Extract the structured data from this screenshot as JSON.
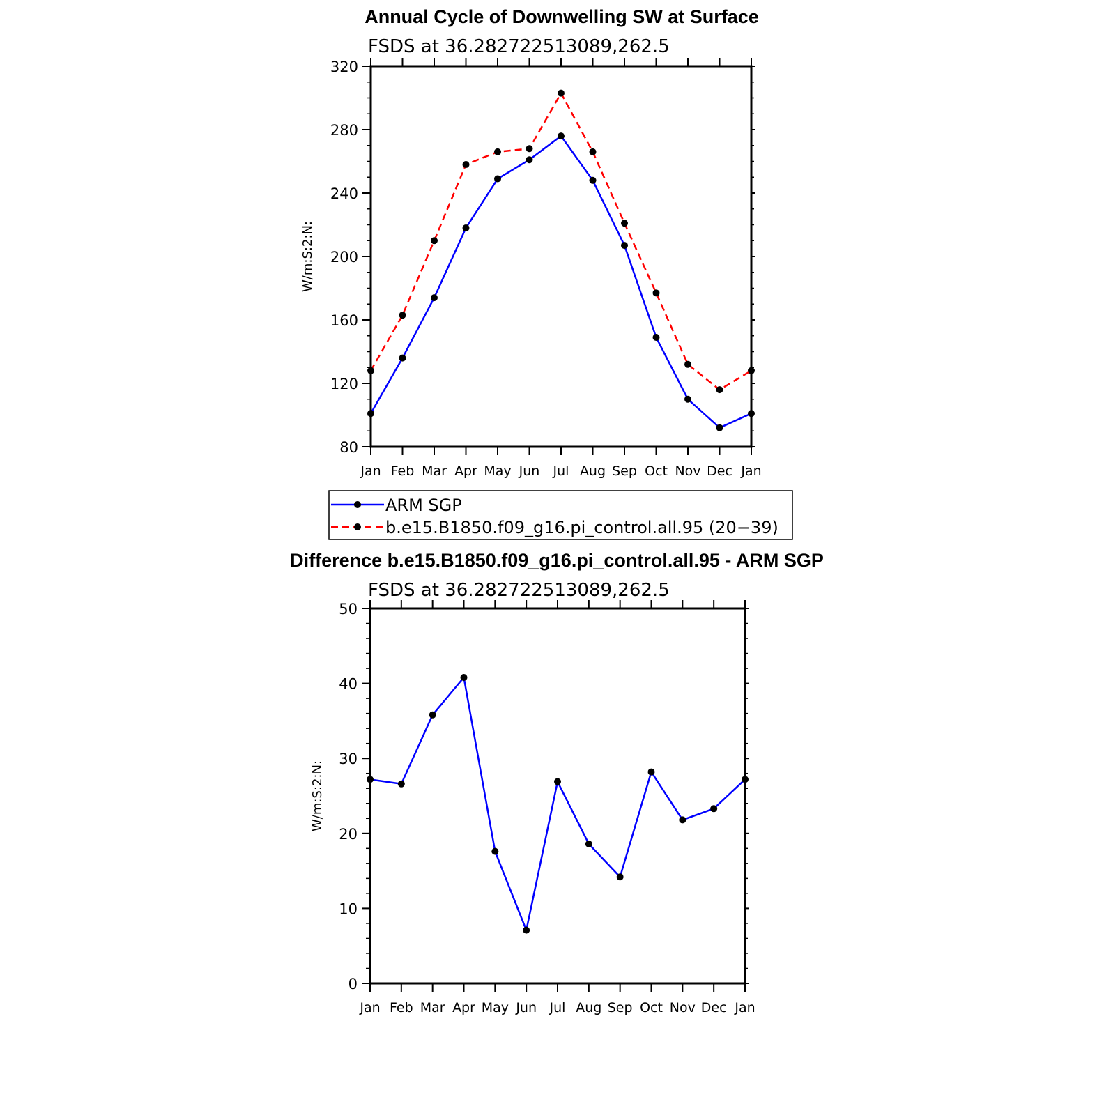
{
  "chart_data": [
    {
      "type": "line",
      "title": "Annual Cycle of Downwelling SW at Surface",
      "subtitle": "FSDS at 36.282722513089,262.5",
      "ylabel": "W/m:S:2:N:",
      "xlabel": "",
      "ylim": [
        80,
        320
      ],
      "yticks": [
        80,
        120,
        160,
        200,
        240,
        280,
        320
      ],
      "categories": [
        "Jan",
        "Feb",
        "Mar",
        "Apr",
        "May",
        "Jun",
        "Jul",
        "Aug",
        "Sep",
        "Oct",
        "Nov",
        "Dec",
        "Jan"
      ],
      "series": [
        {
          "name": "ARM SGP",
          "color": "#0000ff",
          "dash": "solid",
          "values": [
            101,
            136,
            174,
            218,
            249,
            261,
            276,
            248,
            207,
            149,
            110,
            92,
            101
          ]
        },
        {
          "name": "b.e15.B1850.f09_g16.pi_control.all.95 (20−39)",
          "color": "#ff0000",
          "dash": "dashed",
          "values": [
            128,
            163,
            210,
            258,
            266,
            268,
            303,
            266,
            221,
            177,
            132,
            116,
            128
          ]
        }
      ],
      "legend": "below"
    },
    {
      "type": "line",
      "title": "Difference b.e15.B1850.f09_g16.pi_control.all.95 - ARM SGP",
      "subtitle": "FSDS at 36.282722513089,262.5",
      "ylabel": "W/m:S:2:N:",
      "xlabel": "",
      "ylim": [
        0,
        50
      ],
      "yticks": [
        0,
        10,
        20,
        30,
        40,
        50
      ],
      "categories": [
        "Jan",
        "Feb",
        "Mar",
        "Apr",
        "May",
        "Jun",
        "Jul",
        "Aug",
        "Sep",
        "Oct",
        "Nov",
        "Dec",
        "Jan"
      ],
      "series": [
        {
          "name": "Difference",
          "color": "#0000ff",
          "dash": "solid",
          "values": [
            27.2,
            26.6,
            35.8,
            40.8,
            17.6,
            7.1,
            26.9,
            18.6,
            14.2,
            28.2,
            21.8,
            23.3,
            27.2
          ]
        }
      ]
    }
  ]
}
